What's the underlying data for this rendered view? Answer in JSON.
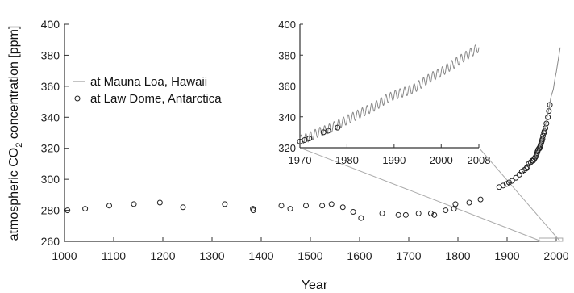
{
  "chart_data": {
    "type": "scatter",
    "xlabel": "Year",
    "ylabel_main": "atmospheric CO",
    "ylabel_sub": "2",
    "ylabel_tail": " concentration [ppm]",
    "xlim": [
      1000,
      2000
    ],
    "ylim": [
      260,
      400
    ],
    "xticks": [
      1000,
      1100,
      1200,
      1300,
      1400,
      1500,
      1600,
      1700,
      1800,
      1900,
      2000
    ],
    "yticks": [
      260,
      280,
      300,
      320,
      340,
      360,
      380,
      400
    ],
    "grid": false,
    "legend_position": "upper-left",
    "series": [
      {
        "name": "at Mauna Loa, Hawaii",
        "kind": "line",
        "color": "#888888",
        "x": [
          1958,
          1960,
          1962,
          1964,
          1966,
          1968,
          1970,
          1972,
          1974,
          1976,
          1978,
          1980,
          1982,
          1984,
          1986,
          1988,
          1990,
          1992,
          1994,
          1996,
          1998,
          2000,
          2002,
          2004,
          2006,
          2008
        ],
        "y": [
          315,
          317,
          318,
          319,
          321,
          323,
          325,
          327,
          330,
          332,
          335,
          338,
          341,
          344,
          347,
          351,
          354,
          356,
          358,
          362,
          366,
          369,
          373,
          377,
          381,
          385
        ]
      },
      {
        "name": "at Law Dome, Antarctica",
        "kind": "scatter",
        "color": "#222222",
        "x": [
          1006,
          1042,
          1091,
          1141,
          1194,
          1241,
          1326,
          1383,
          1384,
          1441,
          1459,
          1491,
          1524,
          1543,
          1566,
          1587,
          1603,
          1646,
          1679,
          1694,
          1720,
          1745,
          1752,
          1775,
          1792,
          1795,
          1823,
          1846,
          1884,
          1892,
          1899,
          1904,
          1910,
          1918,
          1925,
          1930,
          1935,
          1939,
          1941,
          1944,
          1948,
          1951,
          1953,
          1955,
          1957,
          1959,
          1960,
          1961,
          1962,
          1963,
          1965,
          1966,
          1967,
          1968,
          1969,
          1970,
          1971,
          1972,
          1973,
          1975,
          1976,
          1978,
          1980,
          1983,
          1985,
          1987
        ],
        "y": [
          280,
          281,
          283,
          284,
          285,
          282,
          284,
          281,
          280,
          283,
          281,
          283,
          283,
          284,
          282,
          279,
          275,
          278,
          277,
          277,
          278,
          278,
          277,
          280,
          281,
          284,
          285,
          287,
          295,
          296,
          297,
          298,
          299,
          301,
          303,
          305,
          306,
          307,
          308,
          310,
          311,
          312,
          312,
          313,
          314,
          315,
          316,
          317,
          318,
          319,
          320,
          320,
          321,
          322,
          323,
          324,
          325,
          326,
          328,
          330,
          331,
          333,
          336,
          340,
          344,
          348
        ]
      }
    ],
    "inset": {
      "xlim": [
        1970,
        2008
      ],
      "ylim": [
        320,
        400
      ],
      "xticks": [
        1970,
        1980,
        1990,
        2000,
        2008
      ],
      "yticks": [
        320,
        340,
        360,
        380,
        400
      ],
      "mauna_loa_seasonal_amplitude": 3,
      "law_dome_points": {
        "x": [
          1970,
          1971,
          1972,
          1975,
          1976,
          1978
        ],
        "y": [
          324,
          325,
          326,
          330,
          331,
          333
        ]
      }
    }
  }
}
